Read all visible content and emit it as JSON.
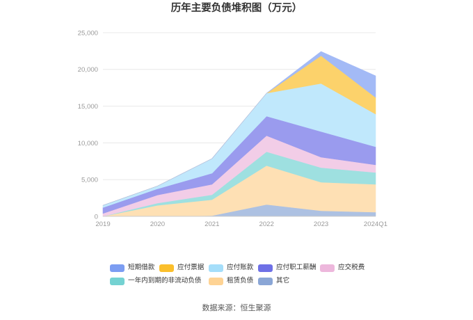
{
  "chart_data": {
    "type": "area",
    "stacked": true,
    "title": "历年主要负债堆积图（万元）",
    "categories": [
      "2019",
      "2020",
      "2021",
      "2022",
      "2023",
      "2024Q1"
    ],
    "ylim": [
      0,
      25000
    ],
    "ytick_labels": [
      "0",
      "5,000",
      "10,000",
      "15,000",
      "20,000",
      "25,000"
    ],
    "grid": true,
    "legend_position": "bottom",
    "series": [
      {
        "name": "短期借款",
        "color": "#7c9df2",
        "values": [
          0,
          0,
          0,
          0,
          560,
          2940
        ]
      },
      {
        "name": "应付票据",
        "color": "#fbbf2c",
        "values": [
          0,
          0,
          0,
          0,
          3790,
          2270
        ]
      },
      {
        "name": "应付账款",
        "color": "#a5defa",
        "values": [
          300,
          380,
          1990,
          3120,
          6540,
          4450
        ]
      },
      {
        "name": "应付职工薪酬",
        "color": "#6e70e6",
        "values": [
          800,
          850,
          1510,
          2650,
          3500,
          2460
        ]
      },
      {
        "name": "应交税费",
        "color": "#edb7dc",
        "values": [
          400,
          1100,
          1420,
          2190,
          1420,
          1040
        ]
      },
      {
        "name": "一年内到期的非流动负债",
        "color": "#74d2d2",
        "values": [
          0,
          300,
          670,
          1890,
          1990,
          1610
        ]
      },
      {
        "name": "租赁负债",
        "color": "#fed394",
        "values": [
          0,
          1500,
          2170,
          5300,
          3880,
          3790
        ]
      },
      {
        "name": "其它",
        "color": "#8aa6d6",
        "values": [
          0,
          0,
          100,
          1610,
          760,
          570
        ]
      }
    ]
  },
  "source_note": "数据来源：恒生聚源"
}
